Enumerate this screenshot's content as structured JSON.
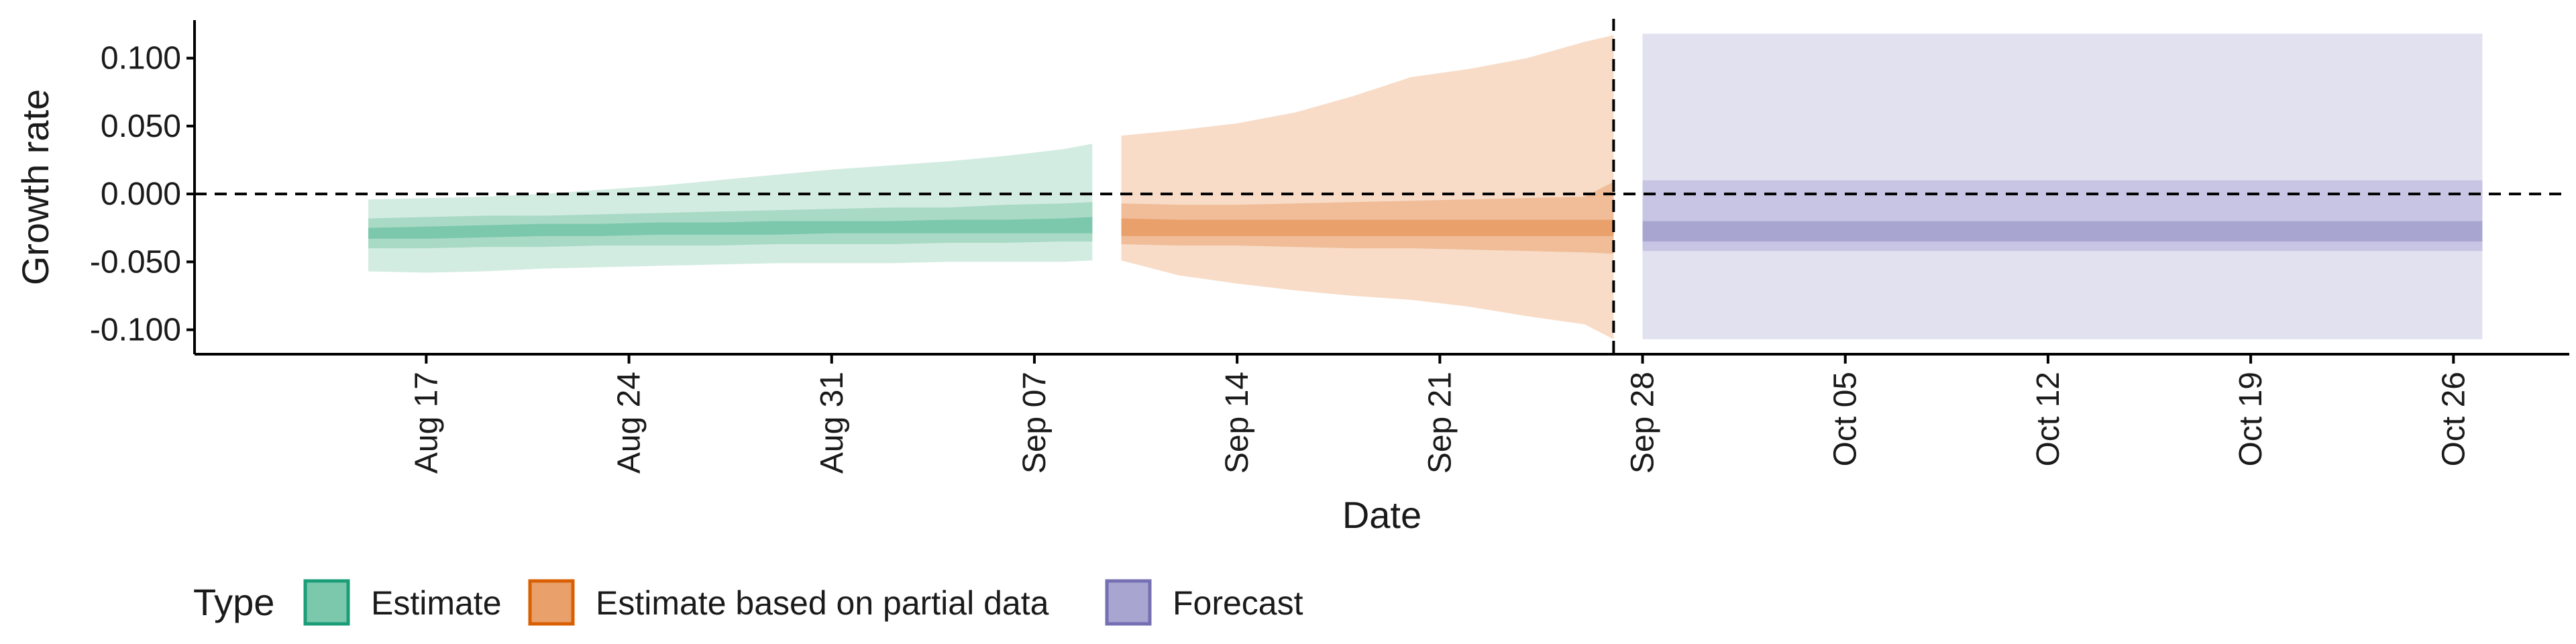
{
  "chart_data": {
    "type": "area",
    "xlabel": "Date",
    "ylabel": "Growth rate",
    "ylim": [
      -0.118,
      0.128
    ],
    "yticks": [
      {
        "value": 0.1,
        "label": "0.100"
      },
      {
        "value": 0.05,
        "label": "0.050"
      },
      {
        "value": 0.0,
        "label": "0.000"
      },
      {
        "value": -0.05,
        "label": "-0.050"
      },
      {
        "value": -0.1,
        "label": "-0.100"
      }
    ],
    "xlim": [
      "2021-08-09",
      "2021-10-30"
    ],
    "xticks": [
      {
        "date": "2021-08-17",
        "label": "Aug 17"
      },
      {
        "date": "2021-08-24",
        "label": "Aug 24"
      },
      {
        "date": "2021-08-31",
        "label": "Aug 31"
      },
      {
        "date": "2021-09-07",
        "label": "Sep 07"
      },
      {
        "date": "2021-09-14",
        "label": "Sep 14"
      },
      {
        "date": "2021-09-21",
        "label": "Sep 21"
      },
      {
        "date": "2021-09-28",
        "label": "Sep 28"
      },
      {
        "date": "2021-10-05",
        "label": "Oct 05"
      },
      {
        "date": "2021-10-12",
        "label": "Oct 12"
      },
      {
        "date": "2021-10-19",
        "label": "Oct 19"
      },
      {
        "date": "2021-10-26",
        "label": "Oct 26"
      }
    ],
    "reference_lines": {
      "horizontal_y": 0.0,
      "vertical_date": "2021-09-27"
    },
    "grid": false,
    "legend": {
      "title": "Type",
      "position": "bottom-left",
      "entries": [
        {
          "label": "Estimate",
          "fill": "#7cc8ad",
          "stroke": "#1b9e77"
        },
        {
          "label": "Estimate based on partial data",
          "fill": "#e9a06b",
          "stroke": "#d95f02"
        },
        {
          "label": "Forecast",
          "fill": "#a8a5d1",
          "stroke": "#7570b3"
        }
      ]
    },
    "series": [
      {
        "type_index": 0,
        "colors": {
          "outer": "#d3ece2",
          "mid": "#a9dac6",
          "inner": "#7cc8ad"
        },
        "dates": [
          "2021-08-15",
          "2021-08-17",
          "2021-08-19",
          "2021-08-21",
          "2021-08-23",
          "2021-08-25",
          "2021-08-27",
          "2021-08-29",
          "2021-08-31",
          "2021-09-02",
          "2021-09-04",
          "2021-09-06",
          "2021-09-08",
          "2021-09-09"
        ],
        "outer_upper": [
          -0.004,
          -0.003,
          -0.002,
          0.0,
          0.003,
          0.006,
          0.01,
          0.014,
          0.018,
          0.021,
          0.024,
          0.028,
          0.033,
          0.037
        ],
        "outer_lower": [
          -0.057,
          -0.058,
          -0.057,
          -0.055,
          -0.054,
          -0.053,
          -0.052,
          -0.051,
          -0.051,
          -0.051,
          -0.05,
          -0.05,
          -0.05,
          -0.049
        ],
        "mid_upper": [
          -0.018,
          -0.017,
          -0.016,
          -0.016,
          -0.015,
          -0.014,
          -0.013,
          -0.012,
          -0.011,
          -0.01,
          -0.01,
          -0.008,
          -0.007,
          -0.006
        ],
        "mid_lower": [
          -0.04,
          -0.04,
          -0.039,
          -0.039,
          -0.038,
          -0.038,
          -0.038,
          -0.037,
          -0.037,
          -0.037,
          -0.036,
          -0.036,
          -0.035,
          -0.035
        ],
        "inner_upper": [
          -0.025,
          -0.024,
          -0.023,
          -0.022,
          -0.022,
          -0.021,
          -0.021,
          -0.02,
          -0.02,
          -0.02,
          -0.019,
          -0.019,
          -0.018,
          -0.017
        ],
        "inner_lower": [
          -0.033,
          -0.033,
          -0.032,
          -0.031,
          -0.031,
          -0.03,
          -0.03,
          -0.03,
          -0.029,
          -0.029,
          -0.029,
          -0.029,
          -0.029,
          -0.029
        ]
      },
      {
        "type_index": 1,
        "colors": {
          "outer": "#f8dcc7",
          "mid": "#f0bd98",
          "inner": "#e9a06b"
        },
        "dates": [
          "2021-09-10",
          "2021-09-12",
          "2021-09-14",
          "2021-09-16",
          "2021-09-18",
          "2021-09-20",
          "2021-09-22",
          "2021-09-24",
          "2021-09-26",
          "2021-09-27"
        ],
        "outer_upper": [
          0.043,
          0.047,
          0.052,
          0.06,
          0.072,
          0.086,
          0.092,
          0.1,
          0.112,
          0.117
        ],
        "outer_lower": [
          -0.049,
          -0.06,
          -0.066,
          -0.071,
          -0.075,
          -0.078,
          -0.083,
          -0.09,
          -0.096,
          -0.107
        ],
        "mid_upper": [
          -0.007,
          -0.008,
          -0.008,
          -0.007,
          -0.006,
          -0.005,
          -0.004,
          -0.003,
          -0.002,
          0.009
        ],
        "mid_lower": [
          -0.037,
          -0.038,
          -0.038,
          -0.039,
          -0.04,
          -0.04,
          -0.041,
          -0.042,
          -0.043,
          -0.044
        ],
        "inner_upper": [
          -0.018,
          -0.019,
          -0.019,
          -0.019,
          -0.019,
          -0.019,
          -0.019,
          -0.019,
          -0.019,
          -0.019
        ],
        "inner_lower": [
          -0.031,
          -0.031,
          -0.031,
          -0.031,
          -0.031,
          -0.031,
          -0.031,
          -0.031,
          -0.031,
          -0.031
        ]
      },
      {
        "type_index": 2,
        "colors": {
          "outer": "#e2e1f0",
          "mid": "#c7c5e3",
          "inner": "#a8a5d1"
        },
        "dates": [
          "2021-09-28",
          "2021-10-27"
        ],
        "outer_upper": [
          0.118,
          0.118
        ],
        "outer_lower": [
          -0.107,
          -0.107
        ],
        "mid_upper": [
          0.01,
          0.01
        ],
        "mid_lower": [
          -0.042,
          -0.042
        ],
        "inner_upper": [
          -0.02,
          -0.02
        ],
        "inner_lower": [
          -0.035,
          -0.035
        ]
      }
    ]
  }
}
